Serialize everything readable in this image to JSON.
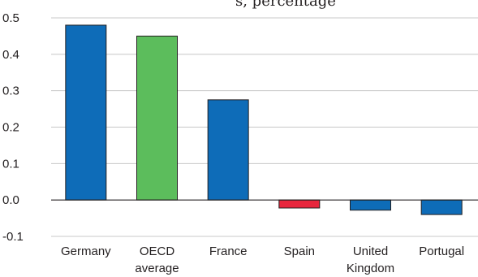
{
  "header_fragment": "s, percentage",
  "chart_data": {
    "type": "bar",
    "title": "",
    "xlabel": "",
    "ylabel": "",
    "ylim": [
      -0.1,
      0.5
    ],
    "yticks": [
      0.5,
      0.4,
      0.3,
      0.2,
      0.1,
      0.0,
      -0.1
    ],
    "ytick_labels": [
      "0.5",
      "0.4",
      "0.3",
      "0.2",
      "0.1",
      "0.0",
      "-0.1"
    ],
    "grid": true,
    "categories": [
      [
        "Germany"
      ],
      [
        "OECD",
        "average"
      ],
      [
        "France"
      ],
      [
        "Spain"
      ],
      [
        "United",
        "Kingdom"
      ],
      [
        "Portugal"
      ]
    ],
    "values": [
      0.48,
      0.45,
      0.275,
      -0.022,
      -0.028,
      -0.04
    ],
    "colors": [
      "#0e6cb8",
      "#5cbd5c",
      "#0e6cb8",
      "#e8263d",
      "#0e6cb8",
      "#0e6cb8"
    ],
    "grid_color": "#c8c8c8",
    "axis_color": "#231f20"
  }
}
